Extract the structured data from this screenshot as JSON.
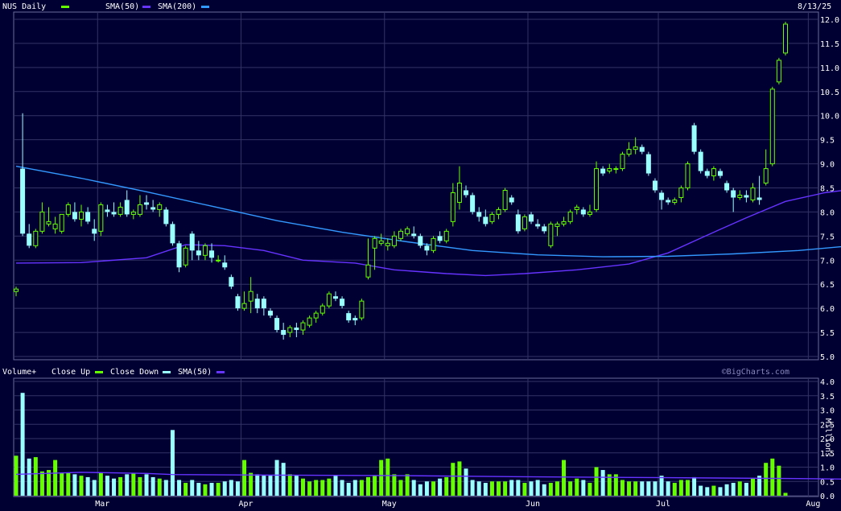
{
  "header": {
    "price_title": "NUS Daily",
    "price_legend": [
      {
        "label": "SMA(50)",
        "color": "#6633ff"
      },
      {
        "label": "SMA(200)",
        "color": "#3399ff"
      }
    ],
    "date": "8/13/25",
    "volume_title": "Volume+",
    "volume_legend": [
      {
        "label": "Close Up",
        "color": "#66ff00"
      },
      {
        "label": "Close Down",
        "color": "#99ffff"
      },
      {
        "label": "SMA(50)",
        "color": "#6633ff"
      }
    ],
    "watermark": "©BigCharts.com",
    "volume_unit": "Millions"
  },
  "colors": {
    "background": "#000033",
    "grid": "#333366",
    "up": "#66ff00",
    "down": "#99ffff",
    "sma50": "#6633ff",
    "sma200": "#3399ff"
  },
  "chart_data": [
    {
      "type": "candlestick",
      "title": "NUS Daily",
      "ylim": [
        5.0,
        12.0
      ],
      "y_ticks": [
        "12.0",
        "11.5",
        "11.0",
        "10.5",
        "10.0",
        "9.5",
        "9.0",
        "8.5",
        "8.0",
        "7.5",
        "7.0",
        "6.5",
        "6.0",
        "5.5",
        "5.0"
      ],
      "x_ticks": [
        "Mar",
        "Apr",
        "May",
        "Jun",
        "Jul",
        "Aug"
      ],
      "x_tick_index": [
        13,
        35,
        57,
        79,
        99,
        122
      ],
      "grid": true,
      "ohlc": [
        [
          6.35,
          6.45,
          6.25,
          6.4
        ],
        [
          8.9,
          10.05,
          7.5,
          7.55
        ],
        [
          7.55,
          7.75,
          7.25,
          7.3
        ],
        [
          7.3,
          7.65,
          7.25,
          7.6
        ],
        [
          7.6,
          8.2,
          7.55,
          8.0
        ],
        [
          7.75,
          8.1,
          7.7,
          7.8
        ],
        [
          7.65,
          7.9,
          7.55,
          7.75
        ],
        [
          7.6,
          7.95,
          7.55,
          7.95
        ],
        [
          7.95,
          8.2,
          7.9,
          8.15
        ],
        [
          8.0,
          8.2,
          7.8,
          7.85
        ],
        [
          7.85,
          8.15,
          7.7,
          8.0
        ],
        [
          8.0,
          8.1,
          7.75,
          7.8
        ],
        [
          7.65,
          7.85,
          7.4,
          7.55
        ],
        [
          7.6,
          8.2,
          7.5,
          8.15
        ],
        [
          8.05,
          8.15,
          7.9,
          8.0
        ],
        [
          8.0,
          8.2,
          7.9,
          7.95
        ],
        [
          7.95,
          8.2,
          7.9,
          8.1
        ],
        [
          8.25,
          8.45,
          7.9,
          7.95
        ],
        [
          7.95,
          8.05,
          7.85,
          8.0
        ],
        [
          7.95,
          8.35,
          7.9,
          8.15
        ],
        [
          8.2,
          8.35,
          8.05,
          8.15
        ],
        [
          8.1,
          8.25,
          8.0,
          8.05
        ],
        [
          8.05,
          8.2,
          7.9,
          8.15
        ],
        [
          8.05,
          8.1,
          7.7,
          7.75
        ],
        [
          7.75,
          7.8,
          7.3,
          7.35
        ],
        [
          7.35,
          7.4,
          6.75,
          6.85
        ],
        [
          6.9,
          7.3,
          6.85,
          7.25
        ],
        [
          7.55,
          7.6,
          7.0,
          7.2
        ],
        [
          7.2,
          7.4,
          7.0,
          7.1
        ],
        [
          7.1,
          7.35,
          7.0,
          7.3
        ],
        [
          7.2,
          7.35,
          6.95,
          7.05
        ],
        [
          7.0,
          7.1,
          6.95,
          7.0
        ],
        [
          6.95,
          7.1,
          6.8,
          6.85
        ],
        [
          6.65,
          6.7,
          6.4,
          6.45
        ],
        [
          6.25,
          6.3,
          5.95,
          6.0
        ],
        [
          6.0,
          6.35,
          5.95,
          6.1
        ],
        [
          6.15,
          6.65,
          5.9,
          6.35
        ],
        [
          6.2,
          6.3,
          5.9,
          6.0
        ],
        [
          6.2,
          6.25,
          5.85,
          6.0
        ],
        [
          5.95,
          6.0,
          5.8,
          5.85
        ],
        [
          5.8,
          5.85,
          5.5,
          5.55
        ],
        [
          5.55,
          5.7,
          5.35,
          5.45
        ],
        [
          5.5,
          5.65,
          5.4,
          5.6
        ],
        [
          5.6,
          5.7,
          5.4,
          5.55
        ],
        [
          5.55,
          5.75,
          5.45,
          5.7
        ],
        [
          5.65,
          5.85,
          5.6,
          5.8
        ],
        [
          5.8,
          5.95,
          5.7,
          5.9
        ],
        [
          5.9,
          6.1,
          5.85,
          6.05
        ],
        [
          6.05,
          6.35,
          6.0,
          6.3
        ],
        [
          6.25,
          6.35,
          6.15,
          6.2
        ],
        [
          6.2,
          6.25,
          6.0,
          6.05
        ],
        [
          5.9,
          5.95,
          5.7,
          5.75
        ],
        [
          5.8,
          5.85,
          5.65,
          5.75
        ],
        [
          5.8,
          6.2,
          5.75,
          6.15
        ],
        [
          6.65,
          7.45,
          6.6,
          6.9
        ],
        [
          7.25,
          7.5,
          6.8,
          7.45
        ],
        [
          7.35,
          7.55,
          7.3,
          7.4
        ],
        [
          7.3,
          7.45,
          7.2,
          7.35
        ],
        [
          7.3,
          7.6,
          7.25,
          7.5
        ],
        [
          7.45,
          7.65,
          7.4,
          7.6
        ],
        [
          7.55,
          7.7,
          7.5,
          7.65
        ],
        [
          7.55,
          7.7,
          7.45,
          7.5
        ],
        [
          7.5,
          7.55,
          7.25,
          7.3
        ],
        [
          7.3,
          7.35,
          7.1,
          7.2
        ],
        [
          7.2,
          7.5,
          7.15,
          7.45
        ],
        [
          7.5,
          7.6,
          7.35,
          7.4
        ],
        [
          7.4,
          7.65,
          7.35,
          7.6
        ],
        [
          7.8,
          8.6,
          7.7,
          8.4
        ],
        [
          8.2,
          8.95,
          8.05,
          8.6
        ],
        [
          8.45,
          8.55,
          8.3,
          8.35
        ],
        [
          8.35,
          8.4,
          7.95,
          8.0
        ],
        [
          8.0,
          8.1,
          7.8,
          7.9
        ],
        [
          7.9,
          8.05,
          7.7,
          7.75
        ],
        [
          7.8,
          8.0,
          7.75,
          7.95
        ],
        [
          7.95,
          8.1,
          7.85,
          8.05
        ],
        [
          8.05,
          8.5,
          8.0,
          8.45
        ],
        [
          8.3,
          8.35,
          8.15,
          8.2
        ],
        [
          7.95,
          8.05,
          7.55,
          7.6
        ],
        [
          7.65,
          7.95,
          7.6,
          7.9
        ],
        [
          7.95,
          8.0,
          7.75,
          7.8
        ],
        [
          7.75,
          7.85,
          7.65,
          7.7
        ],
        [
          7.7,
          7.75,
          7.55,
          7.6
        ],
        [
          7.3,
          7.8,
          7.25,
          7.75
        ],
        [
          7.7,
          7.8,
          7.5,
          7.75
        ],
        [
          7.75,
          7.9,
          7.7,
          7.8
        ],
        [
          7.8,
          8.05,
          7.75,
          8.0
        ],
        [
          8.05,
          8.15,
          7.95,
          8.1
        ],
        [
          8.05,
          8.1,
          7.9,
          7.95
        ],
        [
          7.95,
          8.15,
          7.9,
          8.0
        ],
        [
          8.05,
          9.05,
          8.0,
          8.9
        ],
        [
          8.9,
          8.95,
          8.75,
          8.8
        ],
        [
          8.85,
          9.0,
          8.8,
          8.9
        ],
        [
          8.9,
          8.95,
          8.8,
          8.9
        ],
        [
          8.9,
          9.25,
          8.85,
          9.2
        ],
        [
          9.2,
          9.45,
          9.15,
          9.3
        ],
        [
          9.3,
          9.55,
          9.2,
          9.35
        ],
        [
          9.35,
          9.4,
          9.2,
          9.25
        ],
        [
          9.2,
          9.25,
          8.75,
          8.8
        ],
        [
          8.65,
          8.7,
          8.4,
          8.45
        ],
        [
          8.4,
          8.45,
          8.05,
          8.25
        ],
        [
          8.25,
          8.3,
          8.15,
          8.2
        ],
        [
          8.2,
          8.3,
          8.15,
          8.25
        ],
        [
          8.3,
          8.55,
          8.2,
          8.5
        ],
        [
          8.5,
          9.05,
          8.45,
          9.0
        ],
        [
          9.8,
          9.85,
          9.2,
          9.25
        ],
        [
          9.25,
          9.3,
          8.8,
          8.85
        ],
        [
          8.85,
          8.9,
          8.7,
          8.75
        ],
        [
          8.75,
          8.95,
          8.65,
          8.9
        ],
        [
          8.85,
          8.9,
          8.7,
          8.75
        ],
        [
          8.6,
          8.65,
          8.4,
          8.45
        ],
        [
          8.45,
          8.5,
          8.0,
          8.3
        ],
        [
          8.3,
          8.45,
          8.25,
          8.35
        ],
        [
          8.35,
          8.45,
          8.2,
          8.3
        ],
        [
          8.25,
          8.6,
          8.2,
          8.5
        ],
        [
          8.3,
          8.75,
          8.15,
          8.25
        ],
        [
          8.6,
          9.3,
          8.55,
          8.9
        ],
        [
          9.0,
          10.6,
          8.95,
          10.55
        ],
        [
          10.7,
          11.2,
          10.65,
          11.15
        ],
        [
          11.3,
          11.95,
          11.25,
          11.9
        ]
      ],
      "series": [
        {
          "name": "SMA(50)",
          "values": [
            [
              0,
              6.94
            ],
            [
              10,
              6.95
            ],
            [
              20,
              7.05
            ],
            [
              26,
              7.32
            ],
            [
              32,
              7.3
            ],
            [
              38,
              7.2
            ],
            [
              44,
              7.0
            ],
            [
              52,
              6.94
            ],
            [
              58,
              6.8
            ],
            [
              66,
              6.72
            ],
            [
              72,
              6.68
            ],
            [
              78,
              6.72
            ],
            [
              86,
              6.8
            ],
            [
              94,
              6.92
            ],
            [
              100,
              7.15
            ],
            [
              106,
              7.52
            ],
            [
              112,
              7.88
            ],
            [
              118,
              8.22
            ],
            [
              124,
              8.4
            ],
            [
              130,
              8.5
            ],
            [
              134,
              8.57
            ]
          ]
        },
        {
          "name": "SMA(200)",
          "values": [
            [
              0,
              8.95
            ],
            [
              10,
              8.7
            ],
            [
              20,
              8.42
            ],
            [
              30,
              8.12
            ],
            [
              40,
              7.82
            ],
            [
              50,
              7.58
            ],
            [
              60,
              7.38
            ],
            [
              70,
              7.2
            ],
            [
              80,
              7.11
            ],
            [
              90,
              7.07
            ],
            [
              100,
              7.08
            ],
            [
              110,
              7.13
            ],
            [
              120,
              7.2
            ],
            [
              130,
              7.32
            ],
            [
              134,
              7.41
            ]
          ]
        }
      ]
    },
    {
      "type": "bar",
      "title": "Volume+",
      "ylabel": "Millions",
      "ylim": [
        0,
        4.0
      ],
      "y_ticks": [
        "4.0",
        "3.5",
        "3.0",
        "2.5",
        "2.0",
        "1.5",
        "1.0",
        "0.5",
        "0.0"
      ],
      "x_ticks": [
        "Mar",
        "Apr",
        "May",
        "Jun",
        "Jul",
        "Aug"
      ],
      "values": [
        1.4,
        3.6,
        1.3,
        1.35,
        0.85,
        0.9,
        1.25,
        0.8,
        0.8,
        0.75,
        0.7,
        0.65,
        0.55,
        0.8,
        0.7,
        0.6,
        0.65,
        0.75,
        0.8,
        0.65,
        0.75,
        0.65,
        0.6,
        0.55,
        2.3,
        0.55,
        0.45,
        0.55,
        0.45,
        0.4,
        0.45,
        0.45,
        0.5,
        0.55,
        0.5,
        1.25,
        0.8,
        0.75,
        0.7,
        0.7,
        1.25,
        1.15,
        0.75,
        0.7,
        0.6,
        0.5,
        0.55,
        0.55,
        0.6,
        0.7,
        0.55,
        0.45,
        0.55,
        0.55,
        0.65,
        0.7,
        1.25,
        1.3,
        0.75,
        0.55,
        0.75,
        0.55,
        0.4,
        0.5,
        0.5,
        0.6,
        0.65,
        1.15,
        1.2,
        0.95,
        0.55,
        0.5,
        0.45,
        0.5,
        0.5,
        0.5,
        0.55,
        0.55,
        0.45,
        0.5,
        0.55,
        0.4,
        0.45,
        0.5,
        1.25,
        0.5,
        0.6,
        0.55,
        0.45,
        1.0,
        0.9,
        0.75,
        0.75,
        0.55,
        0.5,
        0.5,
        0.5,
        0.5,
        0.5,
        0.7,
        0.5,
        0.45,
        0.55,
        0.55,
        0.65,
        0.35,
        0.3,
        0.35,
        0.3,
        0.4,
        0.45,
        0.5,
        0.45,
        0.6,
        0.7,
        1.15,
        1.3,
        1.05,
        0.1
      ],
      "series": [
        {
          "name": "SMA(50)",
          "values": [
            [
              0,
              0.75
            ],
            [
              10,
              0.82
            ],
            [
              20,
              0.78
            ],
            [
              24,
              0.74
            ],
            [
              40,
              0.72
            ],
            [
              60,
              0.7
            ],
            [
              80,
              0.66
            ],
            [
              100,
              0.63
            ],
            [
              120,
              0.6
            ],
            [
              128,
              0.58
            ],
            [
              134,
              0.6
            ]
          ]
        }
      ]
    }
  ]
}
